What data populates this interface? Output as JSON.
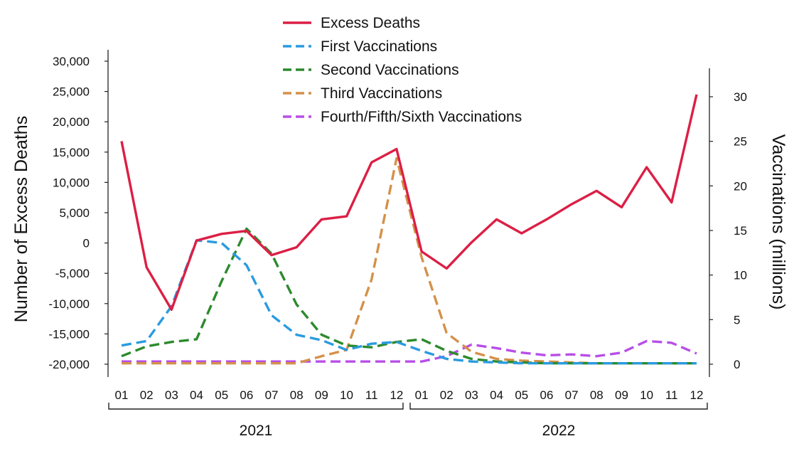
{
  "chart_data": {
    "type": "line",
    "xlabel": "",
    "ylabel": "Number of Excess Deaths",
    "y2label": "Vaccinations (millions)",
    "x": [
      "01",
      "02",
      "03",
      "04",
      "05",
      "06",
      "07",
      "08",
      "09",
      "10",
      "11",
      "12",
      "01",
      "02",
      "03",
      "04",
      "05",
      "06",
      "07",
      "08",
      "09",
      "10",
      "11",
      "12"
    ],
    "year_groups": [
      {
        "label": "2021",
        "start": 0,
        "end": 11
      },
      {
        "label": "2022",
        "start": 12,
        "end": 23
      }
    ],
    "ylim": [
      -20000,
      30000
    ],
    "yticks": [
      -20000,
      -15000,
      -10000,
      -5000,
      0,
      5000,
      10000,
      15000,
      20000,
      25000,
      30000
    ],
    "ytick_labels": [
      "-20,000",
      "-15,000",
      "-10,000",
      "-5,000",
      "0",
      "5,000",
      "10,000",
      "15,000",
      "20,000",
      "25,000",
      "30,000"
    ],
    "y2lim": [
      0,
      30
    ],
    "y2ticks": [
      0,
      5,
      10,
      15,
      20,
      25,
      30
    ],
    "y2tick_labels": [
      "0",
      "5",
      "10",
      "15",
      "20",
      "25",
      "30"
    ],
    "legend_position": "top-center",
    "grid": false,
    "series": [
      {
        "name": "Excess Deaths",
        "axis": "left",
        "style": "solid",
        "color": "#dc1f45",
        "values": [
          16800,
          -4000,
          -11000,
          400,
          1500,
          2000,
          -2000,
          -700,
          3900,
          4400,
          13300,
          15500,
          -1400,
          -4200,
          100,
          3900,
          1600,
          3900,
          6400,
          8600,
          5900,
          12500,
          6700,
          24500
        ]
      },
      {
        "name": "First Vaccinations",
        "axis": "right",
        "style": "dashed",
        "color": "#2a9be0",
        "values": [
          2.1,
          2.6,
          6.5,
          13.9,
          13.6,
          11.1,
          5.5,
          3.3,
          2.7,
          1.6,
          2.3,
          2.5,
          1.5,
          0.6,
          0.3,
          0.2,
          0.1,
          0.1,
          0.1,
          0.1,
          0.1,
          0.1,
          0.1,
          0.1
        ]
      },
      {
        "name": "Second Vaccinations",
        "axis": "right",
        "style": "dashed",
        "color": "#2c8a2c",
        "values": [
          0.9,
          2.0,
          2.5,
          2.8,
          9.3,
          15.2,
          12.4,
          6.7,
          3.3,
          2.1,
          1.9,
          2.5,
          2.8,
          1.5,
          0.6,
          0.3,
          0.2,
          0.1,
          0.1,
          0.1,
          0.1,
          0.1,
          0.1,
          0.1
        ]
      },
      {
        "name": "Third Vaccinations",
        "axis": "right",
        "style": "dashed",
        "color": "#d4914a",
        "values": [
          0.1,
          0.1,
          0.1,
          0.1,
          0.1,
          0.1,
          0.1,
          0.1,
          0.9,
          1.6,
          9.5,
          23.1,
          12.0,
          3.5,
          1.4,
          0.6,
          0.4,
          0.3,
          0.2,
          0.1,
          0.1,
          0.1,
          0.1,
          0.1
        ]
      },
      {
        "name": "Fourth/Fifth/Sixth Vaccinations",
        "axis": "right",
        "style": "dashed",
        "color": "#b84ee8",
        "values": [
          0.3,
          0.3,
          0.3,
          0.3,
          0.3,
          0.3,
          0.3,
          0.3,
          0.3,
          0.3,
          0.3,
          0.3,
          0.3,
          0.9,
          2.2,
          1.8,
          1.3,
          1.0,
          1.1,
          0.9,
          1.3,
          2.6,
          2.4,
          1.2
        ]
      }
    ]
  }
}
